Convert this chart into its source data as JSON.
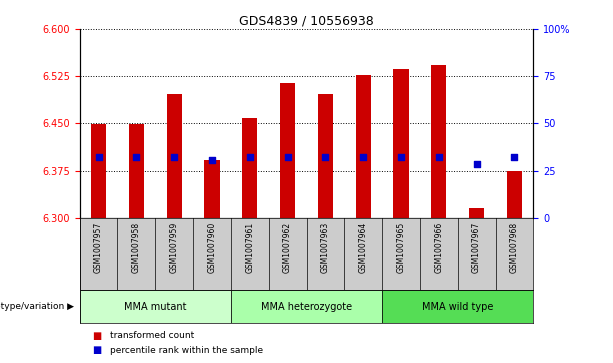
{
  "title": "GDS4839 / 10556938",
  "samples": [
    "GSM1007957",
    "GSM1007958",
    "GSM1007959",
    "GSM1007960",
    "GSM1007961",
    "GSM1007962",
    "GSM1007963",
    "GSM1007964",
    "GSM1007965",
    "GSM1007966",
    "GSM1007967",
    "GSM1007968"
  ],
  "bar_tops": [
    6.449,
    6.449,
    6.497,
    6.392,
    6.459,
    6.515,
    6.497,
    6.527,
    6.537,
    6.543,
    6.315,
    6.375
  ],
  "bar_bottom": 6.3,
  "percentile_values": [
    6.397,
    6.397,
    6.397,
    6.392,
    6.397,
    6.397,
    6.397,
    6.397,
    6.397,
    6.397,
    6.385,
    6.397
  ],
  "bar_color": "#cc0000",
  "dot_color": "#0000cc",
  "ylim_left": [
    6.3,
    6.6
  ],
  "ylim_right": [
    0,
    100
  ],
  "yticks_left": [
    6.3,
    6.375,
    6.45,
    6.525,
    6.6
  ],
  "yticks_left_labels": [
    "6.3",
    "6.375",
    "6.45",
    "6.525",
    "6.6"
  ],
  "yticks_right": [
    0,
    25,
    50,
    75,
    100
  ],
  "yticks_right_labels": [
    "0",
    "25",
    "50",
    "75",
    "100%"
  ],
  "groups": [
    {
      "label": "MMA mutant",
      "start": 0,
      "end": 4,
      "color": "#ccffcc"
    },
    {
      "label": "MMA heterozygote",
      "start": 4,
      "end": 8,
      "color": "#aaffaa"
    },
    {
      "label": "MMA wild type",
      "start": 8,
      "end": 12,
      "color": "#55dd55"
    }
  ],
  "gsm_row_color": "#cccccc",
  "legend_items": [
    {
      "label": "transformed count",
      "color": "#cc0000"
    },
    {
      "label": "percentile rank within the sample",
      "color": "#0000cc"
    }
  ],
  "bar_width": 0.4,
  "genotype_label": "genotype/variation"
}
